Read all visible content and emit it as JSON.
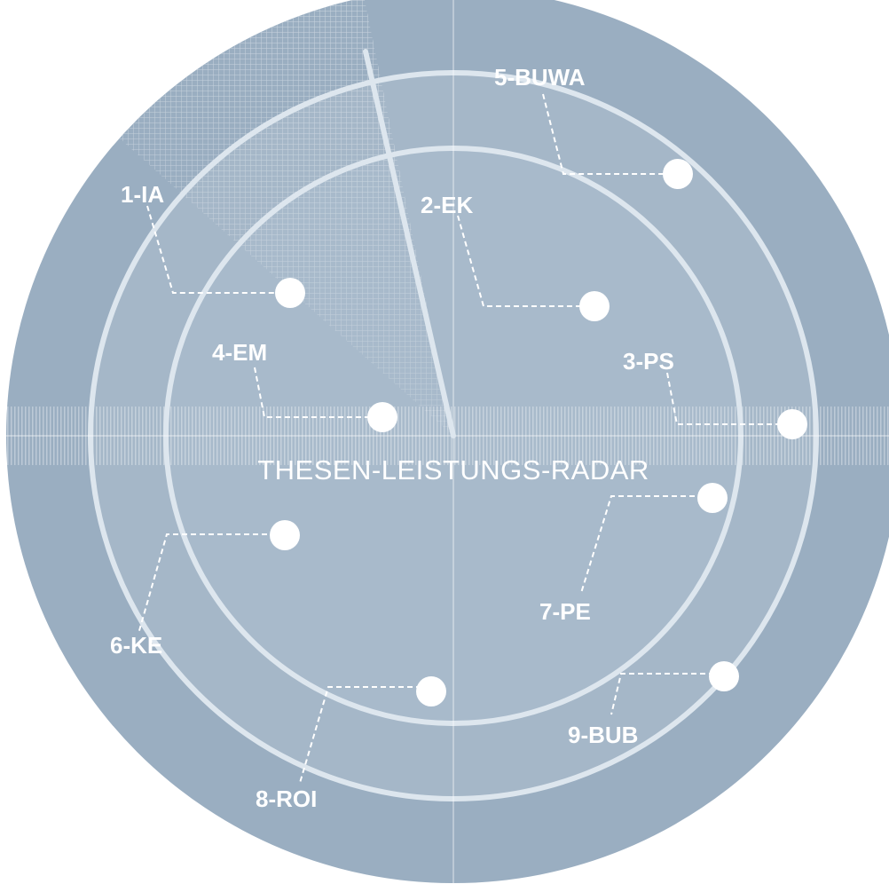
{
  "title": "THESEN-LEISTUNGS-RADAR",
  "colors": {
    "disc": "#a7b9c9",
    "band": "#9aaec1",
    "ring": "#dde6ee",
    "marker": "#ffffff",
    "text": "#ffffff"
  },
  "markers": [
    {
      "id": "1-IA",
      "label": "1-IA"
    },
    {
      "id": "2-EK",
      "label": "2-EK"
    },
    {
      "id": "3-PS",
      "label": "3-PS"
    },
    {
      "id": "4-EM",
      "label": "4-EM"
    },
    {
      "id": "5-BUWA",
      "label": "5-BUWA"
    },
    {
      "id": "6-KE",
      "label": "6-KE"
    },
    {
      "id": "7-PE",
      "label": "7-PE"
    },
    {
      "id": "8-ROI",
      "label": "8-ROI"
    },
    {
      "id": "9-BUB",
      "label": "9-BUB"
    }
  ]
}
